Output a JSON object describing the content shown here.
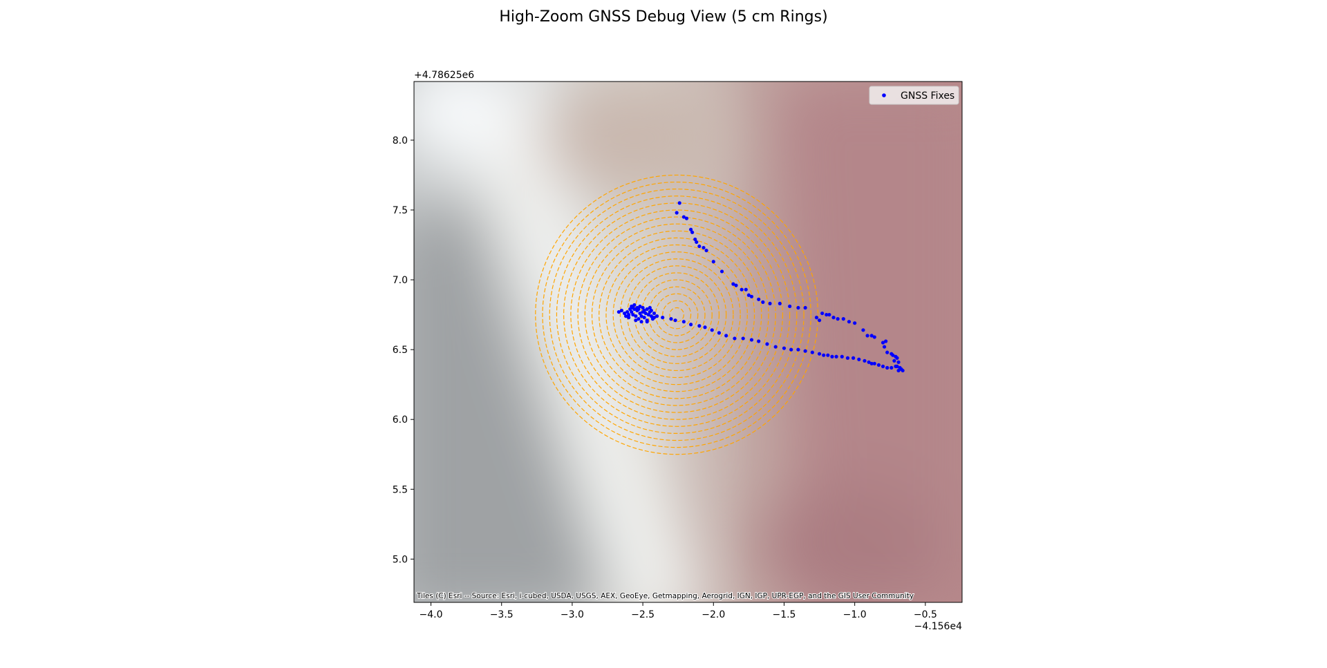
{
  "chart_data": {
    "type": "scatter",
    "title": "High-Zoom GNSS Debug View (5 cm Rings)",
    "xlabel": "",
    "ylabel": "",
    "x_offset_label": "−4.156e4",
    "y_offset_label": "+4.78625e6",
    "xlim": [
      -4.12,
      -0.24
    ],
    "ylim": [
      4.69,
      8.42
    ],
    "x_ticks": [
      {
        "value": -4.0,
        "label": "−4.0"
      },
      {
        "value": -3.5,
        "label": "−3.5"
      },
      {
        "value": -3.0,
        "label": "−3.0"
      },
      {
        "value": -2.5,
        "label": "−2.5"
      },
      {
        "value": -2.0,
        "label": "−2.0"
      },
      {
        "value": -1.5,
        "label": "−1.5"
      },
      {
        "value": -1.0,
        "label": "−1.0"
      },
      {
        "value": -0.5,
        "label": "−0.5"
      }
    ],
    "y_ticks": [
      {
        "value": 5.0,
        "label": "5.0"
      },
      {
        "value": 5.5,
        "label": "5.5"
      },
      {
        "value": 6.0,
        "label": "6.0"
      },
      {
        "value": 6.5,
        "label": "6.5"
      },
      {
        "value": 7.0,
        "label": "7.0"
      },
      {
        "value": 7.5,
        "label": "7.5"
      },
      {
        "value": 8.0,
        "label": "8.0"
      }
    ],
    "grid": false,
    "legend": {
      "position": "top-right",
      "entries": [
        "GNSS Fixes"
      ]
    },
    "rings": {
      "center": [
        -2.26,
        6.75
      ],
      "spacing": 0.05,
      "count": 20,
      "color": "#FFA500",
      "style": "dashed"
    },
    "series": [
      {
        "name": "GNSS Fixes",
        "color": "#0000FF",
        "marker": "circle",
        "points": [
          [
            -2.24,
            7.55
          ],
          [
            -2.26,
            7.48
          ],
          [
            -2.21,
            7.45
          ],
          [
            -2.19,
            7.44
          ],
          [
            -2.16,
            7.36
          ],
          [
            -2.15,
            7.34
          ],
          [
            -2.13,
            7.29
          ],
          [
            -2.12,
            7.27
          ],
          [
            -2.1,
            7.24
          ],
          [
            -2.07,
            7.23
          ],
          [
            -2.05,
            7.21
          ],
          [
            -2.0,
            7.13
          ],
          [
            -1.94,
            7.06
          ],
          [
            -1.86,
            6.97
          ],
          [
            -1.84,
            6.96
          ],
          [
            -1.8,
            6.93
          ],
          [
            -1.77,
            6.93
          ],
          [
            -1.75,
            6.89
          ],
          [
            -1.73,
            6.88
          ],
          [
            -1.68,
            6.86
          ],
          [
            -1.65,
            6.84
          ],
          [
            -1.6,
            6.83
          ],
          [
            -1.53,
            6.83
          ],
          [
            -1.46,
            6.81
          ],
          [
            -1.4,
            6.8
          ],
          [
            -1.35,
            6.8
          ],
          [
            -1.27,
            6.73
          ],
          [
            -1.25,
            6.71
          ],
          [
            -1.23,
            6.76
          ],
          [
            -1.2,
            6.75
          ],
          [
            -1.18,
            6.75
          ],
          [
            -1.15,
            6.73
          ],
          [
            -1.12,
            6.72
          ],
          [
            -1.08,
            6.72
          ],
          [
            -1.04,
            6.7
          ],
          [
            -1.0,
            6.69
          ],
          [
            -0.94,
            6.64
          ],
          [
            -0.91,
            6.6
          ],
          [
            -0.88,
            6.6
          ],
          [
            -0.86,
            6.59
          ],
          [
            -0.8,
            6.55
          ],
          [
            -0.78,
            6.56
          ],
          [
            -0.79,
            6.52
          ],
          [
            -0.77,
            6.48
          ],
          [
            -0.74,
            6.47
          ],
          [
            -0.73,
            6.46
          ],
          [
            -0.71,
            6.45
          ],
          [
            -0.7,
            6.44
          ],
          [
            -0.69,
            6.41
          ],
          [
            -0.72,
            6.42
          ],
          [
            -0.7,
            6.38
          ],
          [
            -0.68,
            6.37
          ],
          [
            -0.66,
            6.35
          ],
          [
            -0.67,
            6.36
          ],
          [
            -0.69,
            6.35
          ],
          [
            -0.71,
            6.38
          ],
          [
            -0.74,
            6.37
          ],
          [
            -0.77,
            6.37
          ],
          [
            -0.8,
            6.38
          ],
          [
            -0.83,
            6.39
          ],
          [
            -0.86,
            6.4
          ],
          [
            -0.88,
            6.4
          ],
          [
            -0.9,
            6.41
          ],
          [
            -0.93,
            6.42
          ],
          [
            -0.97,
            6.43
          ],
          [
            -1.01,
            6.44
          ],
          [
            -1.05,
            6.44
          ],
          [
            -1.09,
            6.45
          ],
          [
            -1.13,
            6.45
          ],
          [
            -1.16,
            6.45
          ],
          [
            -1.19,
            6.46
          ],
          [
            -1.22,
            6.46
          ],
          [
            -1.25,
            6.47
          ],
          [
            -1.3,
            6.48
          ],
          [
            -1.35,
            6.49
          ],
          [
            -1.4,
            6.5
          ],
          [
            -1.45,
            6.5
          ],
          [
            -1.5,
            6.51
          ],
          [
            -1.56,
            6.52
          ],
          [
            -1.62,
            6.54
          ],
          [
            -1.68,
            6.56
          ],
          [
            -1.73,
            6.57
          ],
          [
            -1.79,
            6.58
          ],
          [
            -1.85,
            6.58
          ],
          [
            -1.91,
            6.6
          ],
          [
            -1.96,
            6.62
          ],
          [
            -2.01,
            6.64
          ],
          [
            -2.06,
            6.66
          ],
          [
            -2.1,
            6.67
          ],
          [
            -2.16,
            6.68
          ],
          [
            -2.21,
            6.7
          ],
          [
            -2.27,
            6.71
          ],
          [
            -2.3,
            6.72
          ],
          [
            -2.36,
            6.73
          ],
          [
            -2.4,
            6.74
          ],
          [
            -2.42,
            6.76
          ],
          [
            -2.44,
            6.78
          ],
          [
            -2.45,
            6.8
          ],
          [
            -2.47,
            6.79
          ],
          [
            -2.49,
            6.78
          ],
          [
            -2.5,
            6.8
          ],
          [
            -2.52,
            6.81
          ],
          [
            -2.54,
            6.8
          ],
          [
            -2.56,
            6.82
          ],
          [
            -2.58,
            6.81
          ],
          [
            -2.59,
            6.79
          ],
          [
            -2.61,
            6.77
          ],
          [
            -2.63,
            6.76
          ],
          [
            -2.65,
            6.78
          ],
          [
            -2.67,
            6.77
          ],
          [
            -2.6,
            6.73
          ],
          [
            -2.57,
            6.75
          ],
          [
            -2.55,
            6.74
          ],
          [
            -2.53,
            6.72
          ],
          [
            -2.51,
            6.74
          ],
          [
            -2.49,
            6.73
          ],
          [
            -2.47,
            6.71
          ],
          [
            -2.46,
            6.75
          ],
          [
            -2.44,
            6.74
          ],
          [
            -2.43,
            6.72
          ],
          [
            -2.45,
            6.77
          ],
          [
            -2.48,
            6.76
          ],
          [
            -2.5,
            6.77
          ],
          [
            -2.52,
            6.76
          ],
          [
            -2.54,
            6.78
          ],
          [
            -2.56,
            6.79
          ],
          [
            -2.58,
            6.77
          ],
          [
            -2.6,
            6.75
          ],
          [
            -2.62,
            6.74
          ],
          [
            -2.55,
            6.71
          ],
          [
            -2.51,
            6.7
          ],
          [
            -2.47,
            6.7
          ],
          [
            -2.42,
            6.73
          ],
          [
            -2.53,
            6.79
          ],
          [
            -2.57,
            6.8
          ]
        ]
      }
    ],
    "attribution": "Tiles (C) Esri -- Source: Esri, i-cubed, USDA, USGS, AEX, GeoEye, Getmapping, Aerogrid, IGN, IGP, UPR-EGP, and the GIS User Community"
  },
  "colors": {
    "ring": "#FFA500",
    "points": "#0000FF",
    "axes": "#000000"
  }
}
